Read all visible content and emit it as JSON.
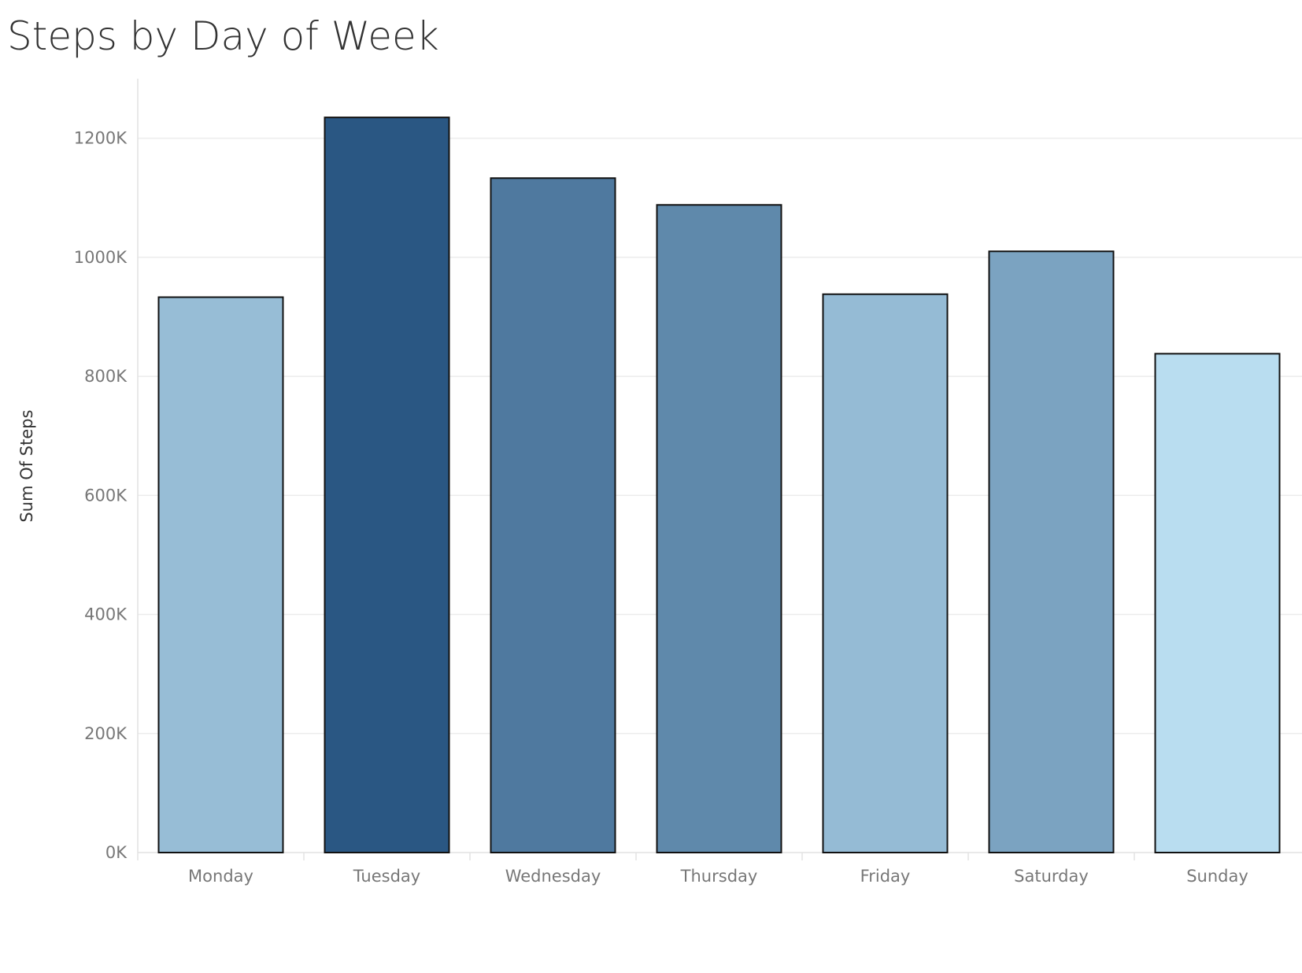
{
  "chart_data": {
    "type": "bar",
    "title": "Steps by Day of Week",
    "xlabel": "",
    "ylabel": "Sum Of Steps",
    "categories": [
      "Monday",
      "Tuesday",
      "Wednesday",
      "Thursday",
      "Friday",
      "Saturday",
      "Sunday"
    ],
    "values": [
      933000,
      1235000,
      1133000,
      1088000,
      938000,
      1010000,
      838000
    ],
    "ylim": [
      0,
      1300000
    ],
    "yticks": [
      0,
      200000,
      400000,
      600000,
      800000,
      1000000,
      1200000
    ],
    "ytick_labels": [
      "0K",
      "200K",
      "400K",
      "600K",
      "800K",
      "1000K",
      "1200K"
    ],
    "grid": true,
    "legend": "none",
    "colors": {
      "min": "#b9ddf0",
      "max": "#2a5783",
      "bar_stroke": "#111111",
      "grid": "#ececec"
    }
  }
}
